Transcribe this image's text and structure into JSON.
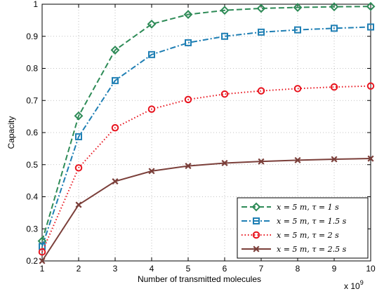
{
  "chart_data": {
    "type": "line",
    "title": "",
    "xlabel": "Number of transmitted molecules",
    "ylabel": "Capacity",
    "x_exponent_label": "x 10",
    "x_exponent_power": "9",
    "x": [
      1,
      2,
      3,
      4,
      5,
      6,
      7,
      8,
      9,
      10
    ],
    "xlim": [
      1,
      10
    ],
    "ylim": [
      0.2,
      1.0
    ],
    "x_ticks": [
      "1",
      "2",
      "3",
      "4",
      "5",
      "6",
      "7",
      "8",
      "9",
      "10"
    ],
    "y_ticks": [
      "0.2",
      "0.3",
      "0.4",
      "0.5",
      "0.6",
      "0.7",
      "0.8",
      "0.9",
      "1"
    ],
    "y_tick_values": [
      0.2,
      0.3,
      0.4,
      0.5,
      0.6,
      0.7,
      0.8,
      0.9,
      1.0
    ],
    "grid": true,
    "legend_position": "bottom-right",
    "series": [
      {
        "name": "x = 5 m, τ = 1 s",
        "color": "#2e8b57",
        "marker": "diamond",
        "line_style": "dashed",
        "values": [
          0.262,
          0.652,
          0.857,
          0.938,
          0.968,
          0.981,
          0.987,
          0.99,
          0.992,
          0.993
        ]
      },
      {
        "name": "x = 5 m, τ = 1.5 s",
        "color": "#1f7fb4",
        "marker": "square",
        "line_style": "dashdot",
        "values": [
          0.245,
          0.587,
          0.762,
          0.843,
          0.88,
          0.9,
          0.913,
          0.92,
          0.925,
          0.929
        ]
      },
      {
        "name": "x = 5 m, τ = 2 s",
        "color": "#e8141e",
        "marker": "circle",
        "line_style": "dotted",
        "values": [
          0.228,
          0.49,
          0.615,
          0.673,
          0.703,
          0.72,
          0.73,
          0.737,
          0.742,
          0.745
        ]
      },
      {
        "name": "x = 5 m, τ = 2.5 s",
        "color": "#7b3f3a",
        "marker": "x",
        "line_style": "solid",
        "values": [
          0.2,
          0.375,
          0.448,
          0.48,
          0.496,
          0.505,
          0.51,
          0.514,
          0.517,
          0.519
        ]
      }
    ]
  }
}
